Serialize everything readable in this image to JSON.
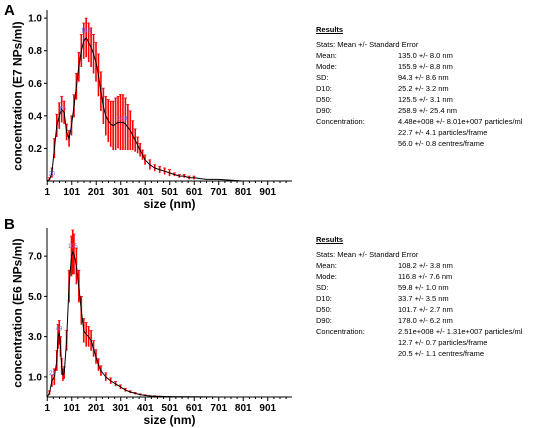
{
  "chart_data": [
    {
      "panel": "A",
      "type": "line",
      "xlabel": "size (nm)",
      "ylabel": "concentration (E7 NPs/ml)",
      "xlim": [
        0,
        1000
      ],
      "ylim": [
        0,
        1.05
      ],
      "x_ticks": [
        1,
        101,
        201,
        301,
        401,
        501,
        601,
        701,
        801,
        901
      ],
      "y_ticks": [
        0.2,
        0.4,
        0.6,
        0.8,
        1.0
      ],
      "y_tick_labels": [
        "0.2",
        "0.4",
        "0.6",
        "0.8",
        "1.0"
      ],
      "peak_labels": [
        {
          "x": 20,
          "y": 0.02,
          "text": "20"
        },
        {
          "x": 65,
          "y": 0.42,
          "text": "65"
        },
        {
          "x": 158,
          "y": 0.9,
          "text": "158"
        },
        {
          "x": 308,
          "y": 0.36,
          "text": "308"
        }
      ],
      "series": [
        {
          "x": [
            1,
            10,
            20,
            30,
            40,
            50,
            60,
            70,
            80,
            90,
            100,
            110,
            120,
            130,
            140,
            150,
            160,
            170,
            180,
            190,
            200,
            210,
            220,
            230,
            240,
            250,
            260,
            270,
            280,
            290,
            300,
            310,
            320,
            330,
            340,
            350,
            360,
            370,
            380,
            390,
            400,
            420,
            440,
            460,
            480,
            500,
            520,
            540,
            560,
            580,
            600,
            650,
            700,
            800,
            900,
            990
          ],
          "y": [
            0.0,
            0.01,
            0.05,
            0.2,
            0.34,
            0.4,
            0.44,
            0.42,
            0.3,
            0.26,
            0.34,
            0.46,
            0.58,
            0.7,
            0.8,
            0.86,
            0.88,
            0.85,
            0.82,
            0.78,
            0.73,
            0.65,
            0.55,
            0.46,
            0.4,
            0.37,
            0.35,
            0.34,
            0.35,
            0.36,
            0.36,
            0.36,
            0.35,
            0.33,
            0.31,
            0.28,
            0.25,
            0.22,
            0.19,
            0.16,
            0.13,
            0.1,
            0.08,
            0.07,
            0.06,
            0.05,
            0.04,
            0.03,
            0.03,
            0.02,
            0.02,
            0.01,
            0.01,
            0.0,
            0.0,
            0.0
          ],
          "err": [
            0.0,
            0.01,
            0.03,
            0.06,
            0.07,
            0.08,
            0.08,
            0.07,
            0.05,
            0.05,
            0.06,
            0.07,
            0.08,
            0.09,
            0.1,
            0.11,
            0.12,
            0.12,
            0.12,
            0.12,
            0.12,
            0.13,
            0.12,
            0.11,
            0.12,
            0.13,
            0.14,
            0.15,
            0.16,
            0.16,
            0.17,
            0.17,
            0.16,
            0.14,
            0.12,
            0.09,
            0.07,
            0.05,
            0.04,
            0.03,
            0.03,
            0.03,
            0.02,
            0.02,
            0.02,
            0.02,
            0.01,
            0.01,
            0.01,
            0.01,
            0.01,
            0.0,
            0.0,
            0.0,
            0.0,
            0.0
          ]
        }
      ]
    },
    {
      "panel": "B",
      "type": "line",
      "xlabel": "size (nm)",
      "ylabel": "concentration (E6 NPs/ml)",
      "xlim": [
        0,
        1000
      ],
      "ylim": [
        0,
        8.4
      ],
      "x_ticks": [
        1,
        101,
        201,
        301,
        401,
        501,
        601,
        701,
        801,
        901
      ],
      "y_ticks": [
        1.0,
        3.0,
        5.0,
        7.0
      ],
      "y_tick_labels": [
        "1.0",
        "3.0",
        "5.0",
        "7.0"
      ],
      "peak_labels": [
        {
          "x": 22,
          "y": 1.0,
          "text": "22"
        },
        {
          "x": 49,
          "y": 3.2,
          "text": "49"
        },
        {
          "x": 105,
          "y": 7.3,
          "text": "105"
        }
      ],
      "series": [
        {
          "x": [
            1,
            10,
            20,
            30,
            40,
            45,
            50,
            55,
            60,
            65,
            70,
            80,
            90,
            100,
            105,
            110,
            120,
            130,
            140,
            150,
            160,
            170,
            180,
            190,
            200,
            210,
            220,
            240,
            260,
            280,
            300,
            320,
            340,
            360,
            380,
            400,
            420,
            440,
            460,
            500,
            600,
            700,
            800,
            990
          ],
          "y": [
            0.0,
            0.2,
            0.8,
            1.0,
            1.8,
            3.0,
            3.2,
            2.5,
            1.5,
            1.1,
            1.2,
            2.8,
            5.5,
            7.0,
            7.2,
            7.1,
            6.5,
            5.5,
            4.3,
            3.3,
            3.1,
            3.0,
            2.8,
            2.4,
            2.0,
            1.6,
            1.3,
            1.0,
            0.8,
            0.65,
            0.5,
            0.35,
            0.25,
            0.18,
            0.12,
            0.08,
            0.05,
            0.04,
            0.03,
            0.02,
            0.01,
            0.0,
            0.0,
            0.0
          ],
          "err": [
            0.0,
            0.1,
            0.3,
            0.4,
            0.5,
            0.6,
            0.6,
            0.5,
            0.4,
            0.3,
            0.3,
            0.5,
            0.8,
            1.0,
            1.1,
            1.0,
            0.9,
            0.8,
            0.7,
            0.6,
            0.6,
            0.5,
            0.5,
            0.4,
            0.35,
            0.3,
            0.25,
            0.2,
            0.15,
            0.12,
            0.1,
            0.08,
            0.06,
            0.05,
            0.04,
            0.03,
            0.02,
            0.02,
            0.01,
            0.01,
            0.0,
            0.0,
            0.0,
            0.0
          ]
        }
      ]
    }
  ],
  "colors": {
    "line": "#000000",
    "error": "#ff0000",
    "peak_label": "#6b6bff"
  },
  "panels": [
    {
      "letter": "A",
      "results": {
        "title": "Results",
        "stats": "Stats: Mean +/- Standard Error",
        "rows": [
          {
            "label": "Mean:",
            "value": "135.0 +/- 8.0 nm"
          },
          {
            "label": "Mode:",
            "value": "155.9 +/- 8.8 nm"
          },
          {
            "label": "SD:",
            "value": "94.3 +/- 8.6 nm"
          },
          {
            "label": "D10:",
            "value": "25.2 +/- 3.2 nm"
          },
          {
            "label": "D50:",
            "value": "125.5 +/- 3.1 nm"
          },
          {
            "label": "D90:",
            "value": "258.9 +/- 25.4 nm"
          },
          {
            "label": "Concentration:",
            "value": "4.48e+008 +/- 8.01e+007 particles/ml"
          }
        ],
        "cont": [
          "22.7 +/- 4.1 particles/frame",
          "56.0 +/- 0.8 centres/frame"
        ]
      }
    },
    {
      "letter": "B",
      "results": {
        "title": "Results",
        "stats": "Stats: Mean +/- Standard Error",
        "rows": [
          {
            "label": "Mean:",
            "value": "108.2 +/- 3.8 nm"
          },
          {
            "label": "Mode:",
            "value": "116.8 +/- 7.6 nm"
          },
          {
            "label": "SD:",
            "value": "59.8 +/- 1.0 nm"
          },
          {
            "label": "D10:",
            "value": "33.7 +/- 3.5 nm"
          },
          {
            "label": "D50:",
            "value": "101.7 +/- 2.7 nm"
          },
          {
            "label": "D90:",
            "value": "178.0 +/- 6.2 nm"
          },
          {
            "label": "Concentration:",
            "value": "2.51e+008 +/- 1.31e+007 particles/ml"
          }
        ],
        "cont": [
          "12.7 +/- 0.7 particles/frame",
          "20.5 +/- 1.1 centres/frame"
        ]
      }
    }
  ]
}
